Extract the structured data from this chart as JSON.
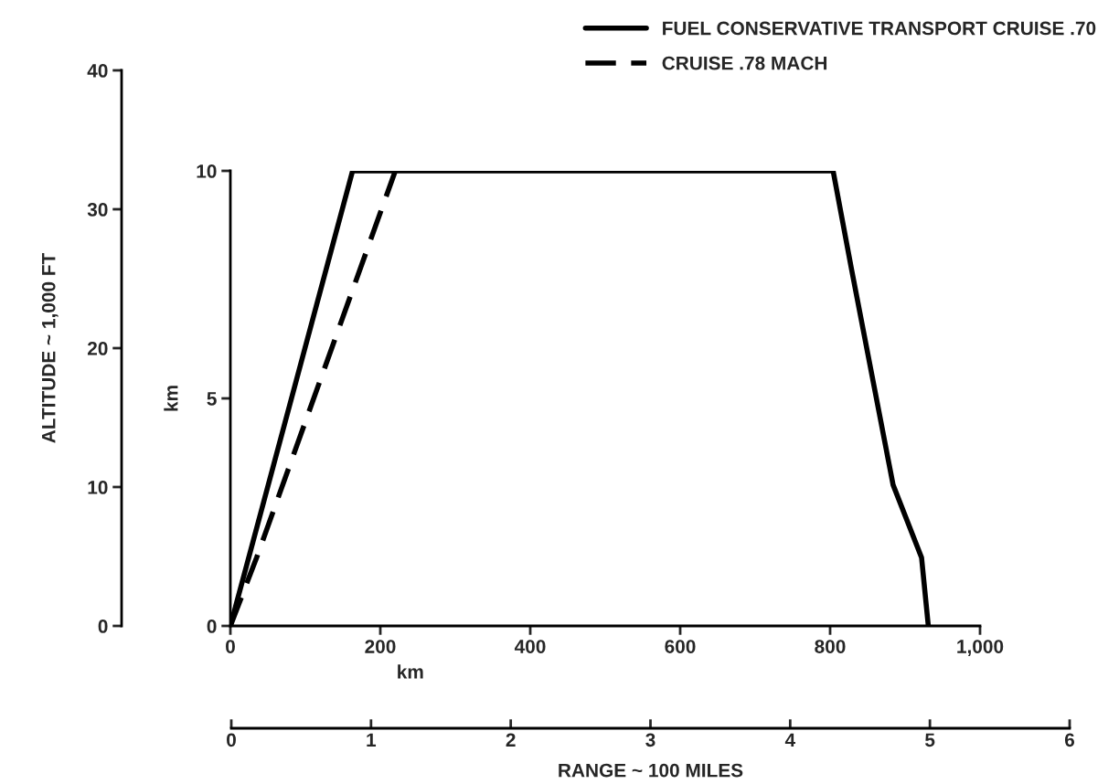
{
  "chart_data": {
    "type": "line",
    "xlabel": "km",
    "ylabel": "km",
    "xlim": [
      0,
      1000
    ],
    "xticks": [
      0,
      200,
      400,
      600,
      800,
      {
        "value": 1000,
        "label": "1,000"
      }
    ],
    "ylim": [
      0,
      10
    ],
    "yticks": [
      0,
      5,
      10
    ],
    "y2label": "ALTITUDE ~ 1,000 FT",
    "y2lim": [
      0,
      40
    ],
    "y2ticks": [
      0,
      10,
      20,
      30,
      40
    ],
    "x2label": "RANGE ~ 100 MILES",
    "x2lim": [
      0,
      6
    ],
    "x2ticks": [
      0,
      1,
      2,
      3,
      4,
      5,
      6
    ],
    "legend": "top right",
    "grid": false,
    "series": [
      {
        "name": "FUEL CONSERVATIVE TRANSPORT CRUISE .70",
        "color": "#000000",
        "line_style": "solid",
        "x": [
          0,
          163,
          804,
          829,
          884,
          922,
          931
        ],
        "values": [
          0,
          10,
          10,
          7.8,
          3.1,
          1.5,
          0
        ]
      },
      {
        "name": "CRUISE .78 MACH",
        "color": "#000000",
        "line_style": "dashed",
        "x": [
          0,
          35,
          220
        ],
        "values": [
          0,
          1.5,
          10
        ]
      }
    ]
  }
}
